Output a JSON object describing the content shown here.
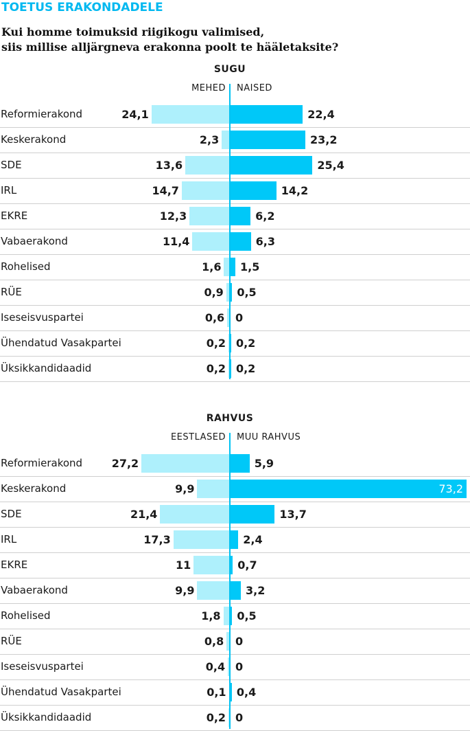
{
  "header": {
    "title": "TOETUS ERAKONDADELE",
    "question_line1": "Kui homme toimuksid riigikogu valimised,",
    "question_line2": "siis millise alljärgneva erakonna poolt te hääletaksite?"
  },
  "colors": {
    "accent": "#00b8f0",
    "bar_left": "#aef0fc",
    "bar_right": "#00c8f8",
    "axis": "#00c2f2"
  },
  "chart_data": [
    {
      "type": "bar",
      "title": "SUGU",
      "left_label": "MEHED",
      "right_label": "NAISED",
      "categories": [
        "Reformierakond",
        "Keskerakond",
        "SDE",
        "IRL",
        "EKRE",
        "Vabaerakond",
        "Rohelised",
        "RÜE",
        "Iseseisvuspartei",
        "Ühendatud Vasakpartei",
        "Üksikkandidaadid"
      ],
      "series": [
        {
          "name": "MEHED",
          "values": [
            24.1,
            2.3,
            13.6,
            14.7,
            12.3,
            11.4,
            1.6,
            0.9,
            0.6,
            0.2,
            0.2
          ],
          "labels": [
            "24,1",
            "2,3",
            "13,6",
            "14,7",
            "12,3",
            "11,4",
            "1,6",
            "0,9",
            "0,6",
            "0,2",
            "0,2"
          ]
        },
        {
          "name": "NAISED",
          "values": [
            22.4,
            23.2,
            25.4,
            14.2,
            6.2,
            6.3,
            1.5,
            0.5,
            0,
            0.2,
            0.2
          ],
          "labels": [
            "22,4",
            "23,2",
            "25,4",
            "14,2",
            "6,2",
            "6,3",
            "1,5",
            "0,5",
            "0",
            "0,2",
            "0,2"
          ]
        }
      ]
    },
    {
      "type": "bar",
      "title": "RAHVUS",
      "left_label": "EESTLASED",
      "right_label": "MUU RAHVUS",
      "categories": [
        "Reformierakond",
        "Keskerakond",
        "SDE",
        "IRL",
        "EKRE",
        "Vabaerakond",
        "Rohelised",
        "RÜE",
        "Iseseisvuspartei",
        "Ühendatud Vasakpartei",
        "Üksikkandidaadid"
      ],
      "series": [
        {
          "name": "EESTLASED",
          "values": [
            27.2,
            9.9,
            21.4,
            17.3,
            11,
            9.9,
            1.8,
            0.8,
            0.4,
            0.1,
            0.2
          ],
          "labels": [
            "27,2",
            "9,9",
            "21,4",
            "17,3",
            "11",
            "9,9",
            "1,8",
            "0,8",
            "0,4",
            "0,1",
            "0,2"
          ]
        },
        {
          "name": "MUU RAHVUS",
          "values": [
            5.9,
            73.2,
            13.7,
            2.4,
            0.7,
            3.2,
            0.5,
            0,
            0,
            0.4,
            0
          ],
          "labels": [
            "5,9",
            "73,2",
            "13,7",
            "2,4",
            "0,7",
            "3,2",
            "0,5",
            "0",
            "0",
            "0,4",
            "0"
          ]
        }
      ]
    }
  ]
}
